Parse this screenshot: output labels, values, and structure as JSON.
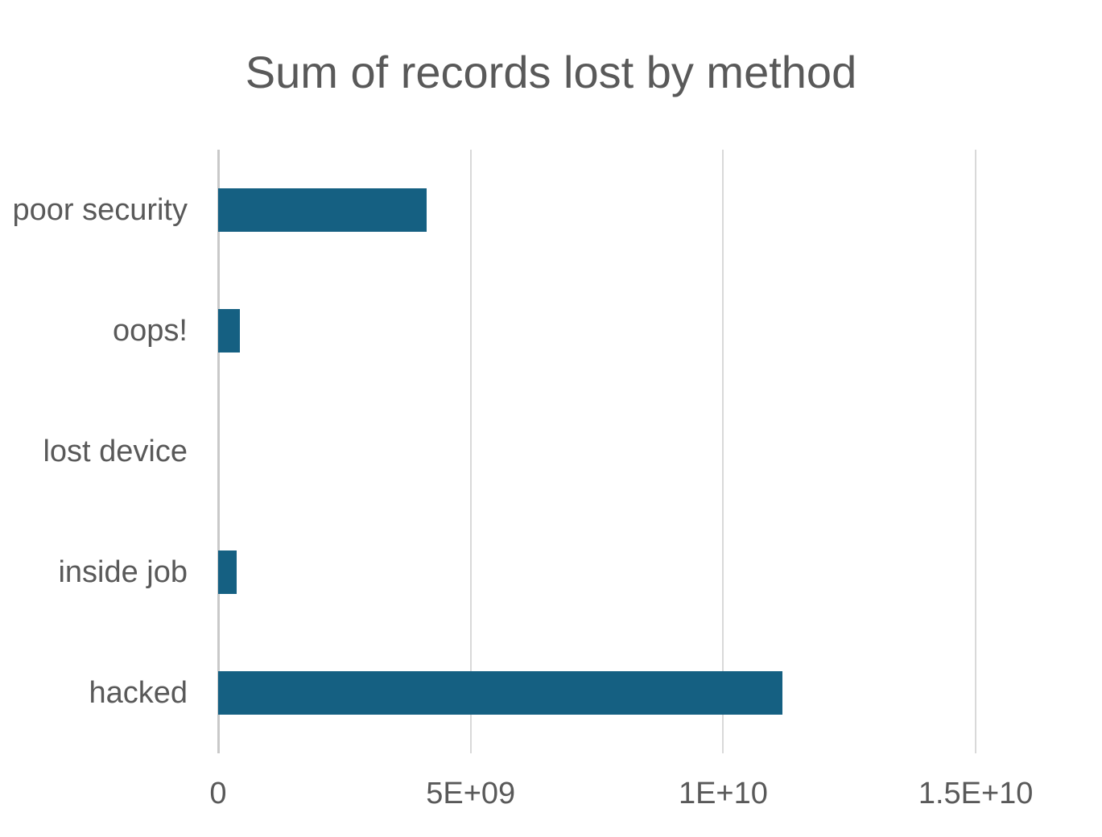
{
  "chart_data": {
    "type": "bar",
    "orientation": "horizontal",
    "title": "Sum of records lost by method",
    "categories": [
      "poor security",
      "oops!",
      "lost device",
      "inside job",
      "hacked"
    ],
    "values": [
      4130000000,
      430000000,
      0,
      370000000,
      11180000000
    ],
    "x_ticks": [
      {
        "value": 0,
        "label": "0"
      },
      {
        "value": 5000000000,
        "label": "5E+09"
      },
      {
        "value": 10000000000,
        "label": "1E+10"
      },
      {
        "value": 15000000000,
        "label": "1.5E+10"
      }
    ],
    "xlim": [
      0,
      17500000000
    ],
    "grid": true,
    "legend": false,
    "xlabel": "",
    "ylabel": "",
    "colors": {
      "bar": "#156082",
      "gridline": "#d9d9d9",
      "axis_line": "#c9c9c9",
      "text": "#595959"
    }
  }
}
